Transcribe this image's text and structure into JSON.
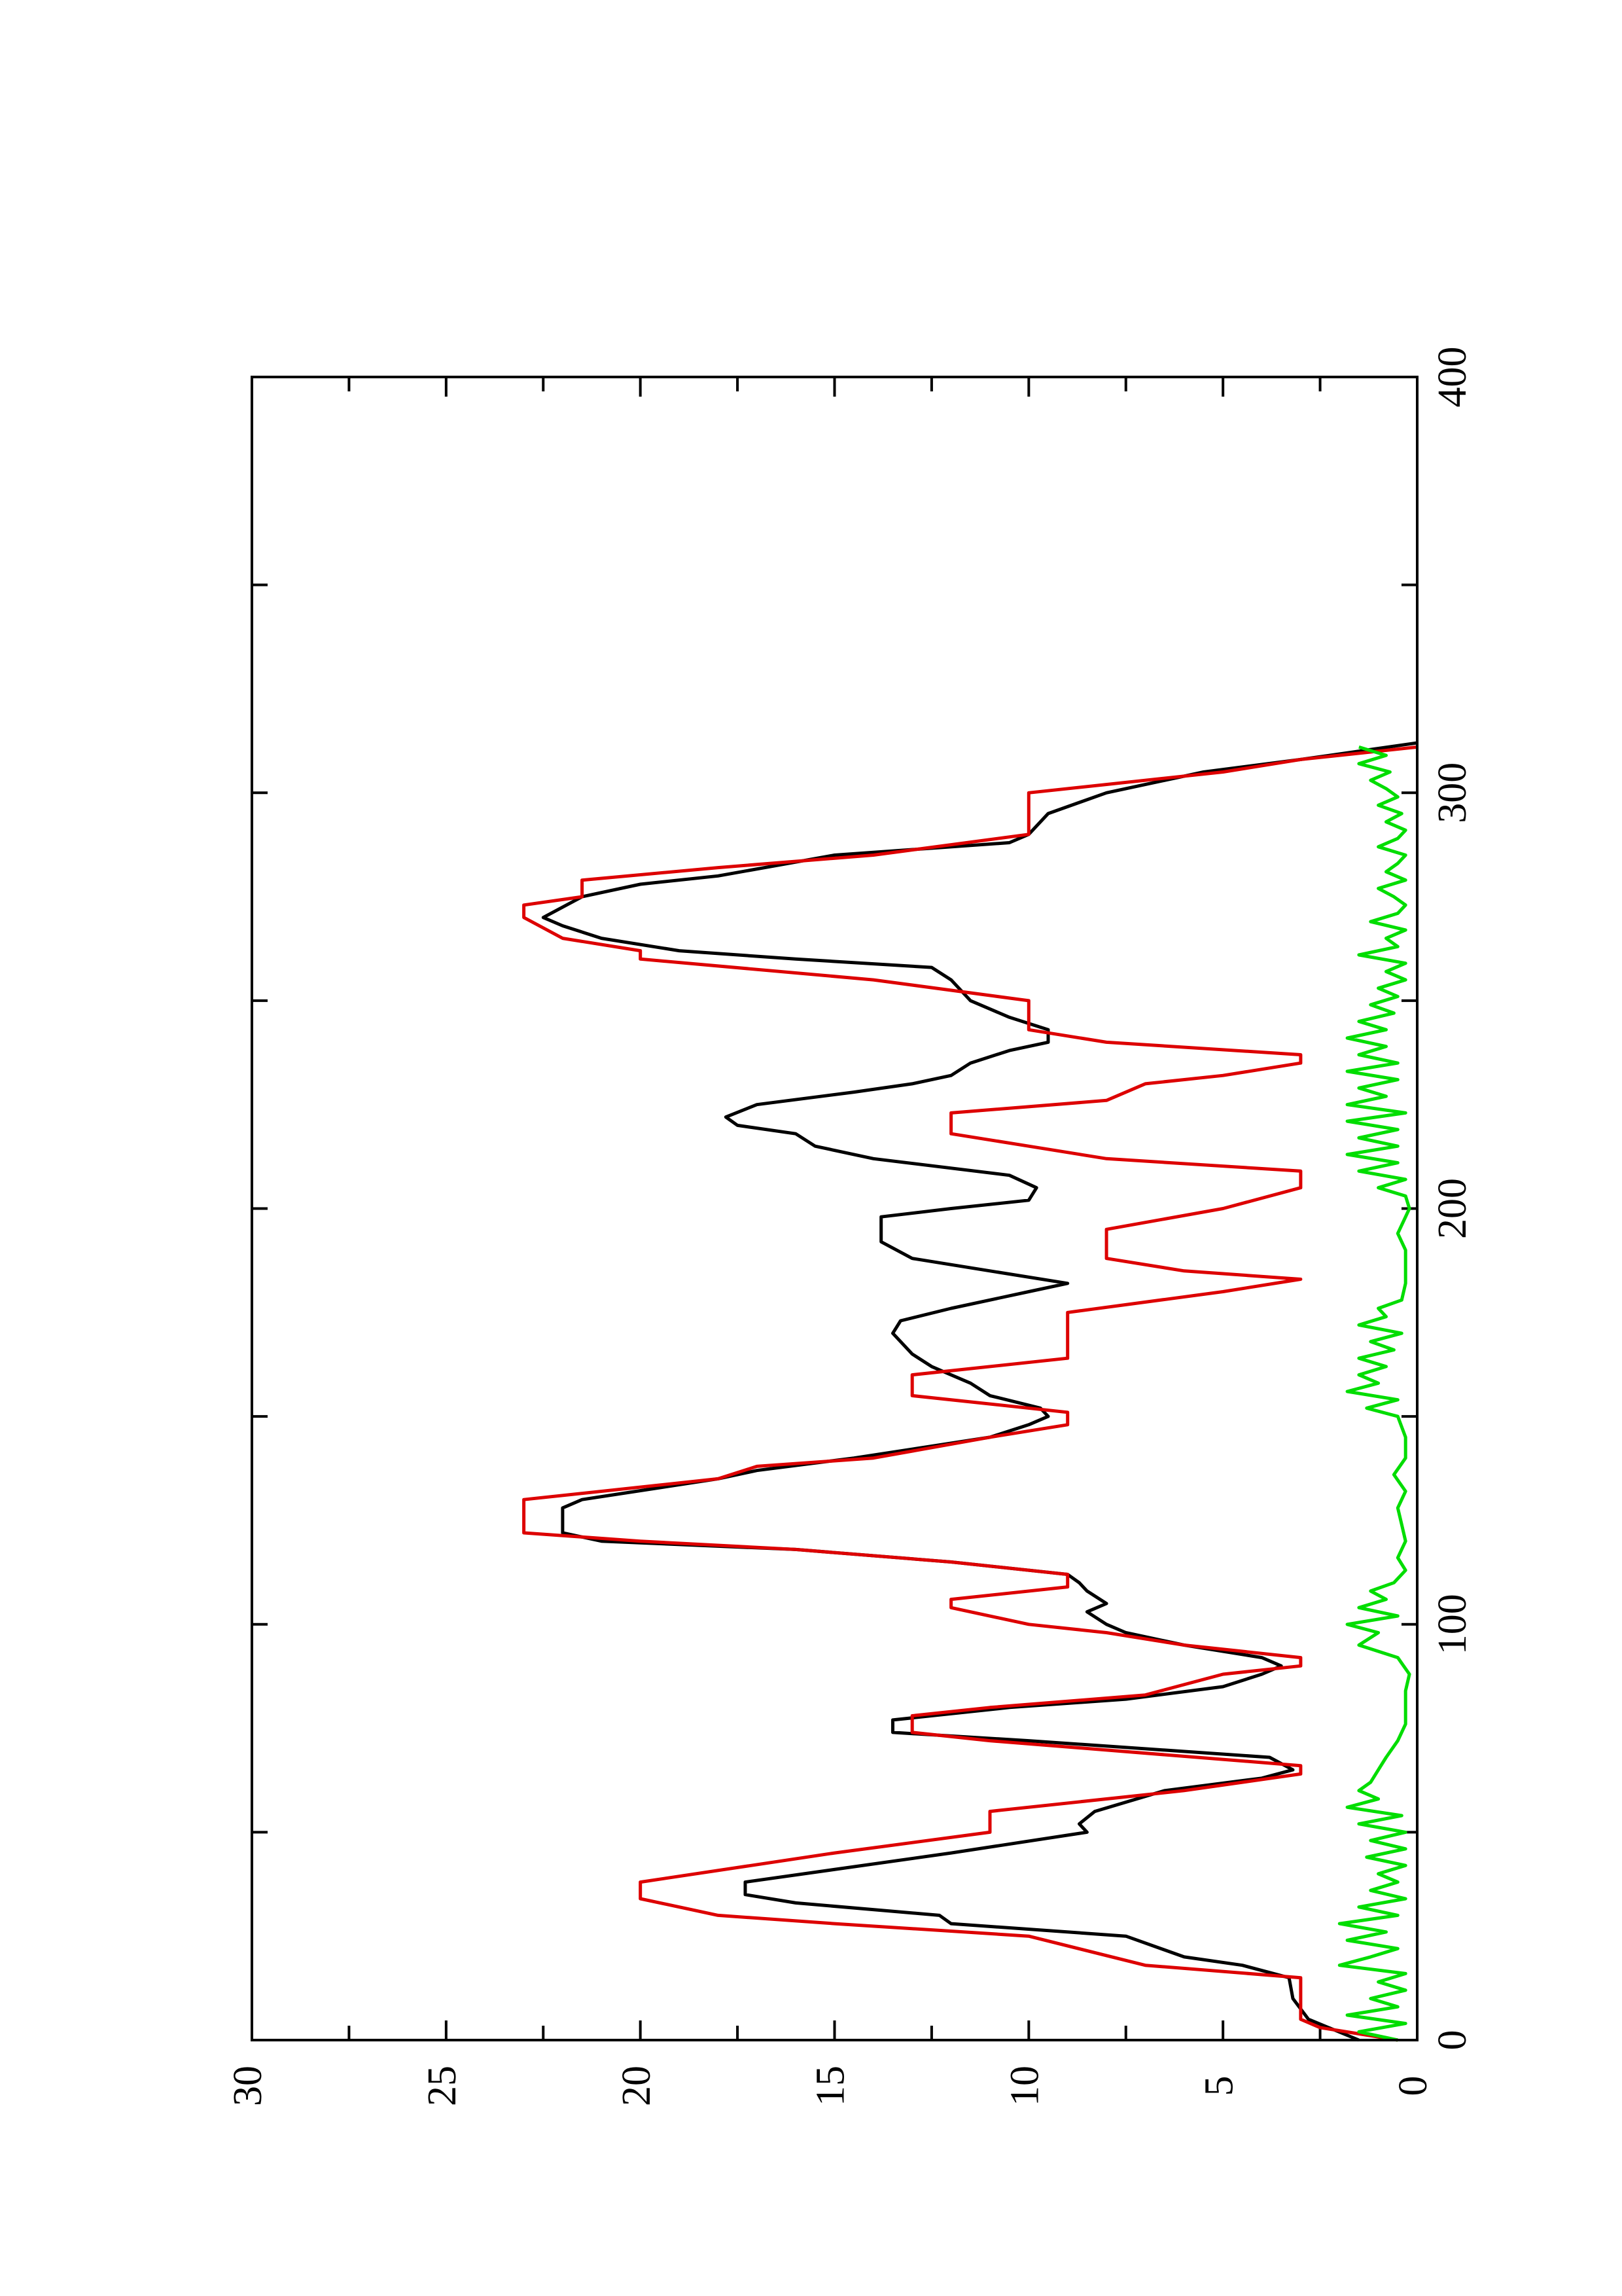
{
  "chart_data": {
    "type": "line",
    "orientation": "rotated-90-ccw",
    "title": "",
    "xlabel": "",
    "ylabel": "",
    "xlim": [
      0,
      400
    ],
    "ylim": [
      0,
      30
    ],
    "grid": false,
    "legend": "none",
    "x_ticks": [
      0,
      100,
      200,
      300,
      400
    ],
    "x_tick_labels": [
      "0",
      "100",
      "200",
      "300",
      "400"
    ],
    "y_ticks": [
      0,
      5,
      10,
      15,
      20,
      25,
      30
    ],
    "y_tick_labels": [
      "0",
      "5",
      "10",
      "15",
      "20",
      "25",
      "30"
    ],
    "series": [
      {
        "color": "#000000",
        "points": [
          [
            0,
            1.5
          ],
          [
            5,
            2.8
          ],
          [
            10,
            3.2
          ],
          [
            15,
            3.3
          ],
          [
            18,
            4.5
          ],
          [
            20,
            6.0
          ],
          [
            25,
            7.5
          ],
          [
            28,
            12.0
          ],
          [
            30,
            12.3
          ],
          [
            33,
            16.0
          ],
          [
            35,
            17.3
          ],
          [
            38,
            17.3
          ],
          [
            45,
            12.0
          ],
          [
            50,
            8.5
          ],
          [
            52,
            8.7
          ],
          [
            55,
            8.3
          ],
          [
            60,
            6.5
          ],
          [
            63,
            4.0
          ],
          [
            65,
            3.2
          ],
          [
            68,
            3.8
          ],
          [
            72,
            10.0
          ],
          [
            74,
            13.5
          ],
          [
            77,
            13.5
          ],
          [
            80,
            10.5
          ],
          [
            82,
            7.5
          ],
          [
            85,
            5.0
          ],
          [
            88,
            4.0
          ],
          [
            90,
            3.5
          ],
          [
            92,
            4.0
          ],
          [
            95,
            6.0
          ],
          [
            98,
            7.5
          ],
          [
            100,
            8.0
          ],
          [
            103,
            8.5
          ],
          [
            105,
            8.0
          ],
          [
            108,
            8.5
          ],
          [
            110,
            8.7
          ],
          [
            112,
            9.0
          ],
          [
            115,
            12.0
          ],
          [
            118,
            16.0
          ],
          [
            120,
            21.0
          ],
          [
            122,
            22.0
          ],
          [
            128,
            22.0
          ],
          [
            130,
            21.5
          ],
          [
            135,
            18.0
          ],
          [
            137,
            17.0
          ],
          [
            140,
            14.5
          ],
          [
            145,
            11.0
          ],
          [
            148,
            10.0
          ],
          [
            150,
            9.5
          ],
          [
            152,
            9.7
          ],
          [
            155,
            11.0
          ],
          [
            158,
            11.5
          ],
          [
            162,
            12.5
          ],
          [
            165,
            13.0
          ],
          [
            170,
            13.5
          ],
          [
            173,
            13.3
          ],
          [
            176,
            12.0
          ],
          [
            180,
            10.0
          ],
          [
            182,
            9.0
          ],
          [
            185,
            11.0
          ],
          [
            188,
            13.0
          ],
          [
            192,
            13.8
          ],
          [
            198,
            13.8
          ],
          [
            200,
            12.0
          ],
          [
            202,
            10.0
          ],
          [
            205,
            9.8
          ],
          [
            208,
            10.5
          ],
          [
            212,
            14.0
          ],
          [
            215,
            15.5
          ],
          [
            218,
            16.0
          ],
          [
            220,
            17.5
          ],
          [
            222,
            17.8
          ],
          [
            225,
            17.0
          ],
          [
            228,
            14.5
          ],
          [
            230,
            13.0
          ],
          [
            232,
            12.0
          ],
          [
            235,
            11.5
          ],
          [
            238,
            10.5
          ],
          [
            240,
            9.5
          ],
          [
            243,
            9.5
          ],
          [
            246,
            10.5
          ],
          [
            250,
            11.5
          ],
          [
            255,
            12.0
          ],
          [
            258,
            12.5
          ],
          [
            260,
            16.0
          ],
          [
            262,
            19.0
          ],
          [
            265,
            21.0
          ],
          [
            268,
            22.0
          ],
          [
            270,
            22.5
          ],
          [
            275,
            21.5
          ],
          [
            278,
            20.0
          ],
          [
            280,
            18.0
          ],
          [
            285,
            15.0
          ],
          [
            288,
            10.5
          ],
          [
            290,
            10.0
          ],
          [
            295,
            9.5
          ],
          [
            300,
            8.0
          ],
          [
            305,
            5.5
          ],
          [
            308,
            3.0
          ],
          [
            312,
            0.0
          ]
        ]
      },
      {
        "color": "#dd0000",
        "points": [
          [
            0,
            0.5
          ],
          [
            3,
            2.5
          ],
          [
            5,
            3.0
          ],
          [
            15,
            3.0
          ],
          [
            18,
            7.0
          ],
          [
            25,
            10.0
          ],
          [
            28,
            15.0
          ],
          [
            30,
            18.0
          ],
          [
            34,
            20.0
          ],
          [
            38,
            20.0
          ],
          [
            45,
            15.0
          ],
          [
            50,
            11.0
          ],
          [
            55,
            11.0
          ],
          [
            60,
            6.0
          ],
          [
            64,
            3.0
          ],
          [
            66,
            3.0
          ],
          [
            72,
            11.0
          ],
          [
            74,
            13.0
          ],
          [
            78,
            13.0
          ],
          [
            80,
            11.0
          ],
          [
            83,
            7.0
          ],
          [
            88,
            5.0
          ],
          [
            90,
            3.0
          ],
          [
            92,
            3.0
          ],
          [
            95,
            6.0
          ],
          [
            98,
            8.0
          ],
          [
            100,
            10.0
          ],
          [
            104,
            12.0
          ],
          [
            106,
            12.0
          ],
          [
            109,
            9.0
          ],
          [
            112,
            9.0
          ],
          [
            115,
            12.0
          ],
          [
            118,
            16.0
          ],
          [
            120,
            20.0
          ],
          [
            122,
            23.0
          ],
          [
            130,
            23.0
          ],
          [
            135,
            18.0
          ],
          [
            138,
            17.0
          ],
          [
            140,
            14.0
          ],
          [
            145,
            11.0
          ],
          [
            148,
            9.0
          ],
          [
            151,
            9.0
          ],
          [
            155,
            13.0
          ],
          [
            160,
            13.0
          ],
          [
            164,
            9.0
          ],
          [
            175,
            9.0
          ],
          [
            180,
            5.0
          ],
          [
            183,
            3.0
          ],
          [
            185,
            6.0
          ],
          [
            188,
            8.0
          ],
          [
            195,
            8.0
          ],
          [
            200,
            5.0
          ],
          [
            205,
            3.0
          ],
          [
            209,
            3.0
          ],
          [
            212,
            8.0
          ],
          [
            215,
            10.0
          ],
          [
            218,
            12.0
          ],
          [
            223,
            12.0
          ],
          [
            226,
            8.0
          ],
          [
            230,
            7.0
          ],
          [
            232,
            5.0
          ],
          [
            235,
            3.0
          ],
          [
            237,
            3.0
          ],
          [
            240,
            8.0
          ],
          [
            243,
            10.0
          ],
          [
            250,
            10.0
          ],
          [
            255,
            14.0
          ],
          [
            260,
            20.0
          ],
          [
            262,
            20.0
          ],
          [
            265,
            22.0
          ],
          [
            270,
            23.0
          ],
          [
            273,
            23.0
          ],
          [
            275,
            21.5
          ],
          [
            279,
            21.5
          ],
          [
            282,
            18.0
          ],
          [
            285,
            14.0
          ],
          [
            290,
            10.0
          ],
          [
            300,
            10.0
          ],
          [
            305,
            5.0
          ],
          [
            308,
            3.0
          ],
          [
            311,
            0.0
          ]
        ]
      },
      {
        "color": "#00dd00",
        "points": [
          [
            0,
            0.5
          ],
          [
            2,
            1.5
          ],
          [
            4,
            0.3
          ],
          [
            6,
            1.8
          ],
          [
            8,
            0.5
          ],
          [
            10,
            1.2
          ],
          [
            12,
            0.3
          ],
          [
            14,
            1.0
          ],
          [
            16,
            0.3
          ],
          [
            18,
            2.0
          ],
          [
            20,
            1.2
          ],
          [
            22,
            0.5
          ],
          [
            24,
            1.8
          ],
          [
            26,
            0.8
          ],
          [
            28,
            2.0
          ],
          [
            30,
            0.5
          ],
          [
            32,
            1.5
          ],
          [
            34,
            0.3
          ],
          [
            36,
            1.2
          ],
          [
            38,
            0.5
          ],
          [
            40,
            1.0
          ],
          [
            42,
            0.3
          ],
          [
            44,
            1.3
          ],
          [
            46,
            0.3
          ],
          [
            48,
            1.2
          ],
          [
            50,
            0.3
          ],
          [
            52,
            1.5
          ],
          [
            54,
            0.4
          ],
          [
            56,
            1.8
          ],
          [
            58,
            1.0
          ],
          [
            60,
            1.5
          ],
          [
            62,
            1.2
          ],
          [
            65,
            1.0
          ],
          [
            68,
            0.8
          ],
          [
            72,
            0.5
          ],
          [
            76,
            0.3
          ],
          [
            80,
            0.3
          ],
          [
            84,
            0.3
          ],
          [
            88,
            0.2
          ],
          [
            92,
            0.5
          ],
          [
            95,
            1.5
          ],
          [
            98,
            1.0
          ],
          [
            100,
            1.8
          ],
          [
            102,
            0.5
          ],
          [
            104,
            1.5
          ],
          [
            106,
            0.8
          ],
          [
            108,
            1.2
          ],
          [
            110,
            0.6
          ],
          [
            113,
            0.3
          ],
          [
            116,
            0.5
          ],
          [
            120,
            0.3
          ],
          [
            124,
            0.4
          ],
          [
            128,
            0.5
          ],
          [
            132,
            0.3
          ],
          [
            136,
            0.6
          ],
          [
            140,
            0.3
          ],
          [
            145,
            0.3
          ],
          [
            150,
            0.5
          ],
          [
            152,
            1.3
          ],
          [
            154,
            0.5
          ],
          [
            156,
            1.8
          ],
          [
            158,
            1.0
          ],
          [
            160,
            1.5
          ],
          [
            162,
            0.8
          ],
          [
            164,
            1.5
          ],
          [
            166,
            0.6
          ],
          [
            168,
            1.2
          ],
          [
            170,
            0.4
          ],
          [
            172,
            1.5
          ],
          [
            174,
            0.8
          ],
          [
            176,
            1.0
          ],
          [
            178,
            0.4
          ],
          [
            182,
            0.3
          ],
          [
            186,
            0.3
          ],
          [
            190,
            0.3
          ],
          [
            194,
            0.5
          ],
          [
            198,
            0.3
          ],
          [
            200,
            0.2
          ],
          [
            203,
            0.3
          ],
          [
            205,
            1.0
          ],
          [
            207,
            0.3
          ],
          [
            209,
            1.5
          ],
          [
            211,
            0.5
          ],
          [
            213,
            1.8
          ],
          [
            215,
            0.5
          ],
          [
            217,
            1.5
          ],
          [
            219,
            0.5
          ],
          [
            221,
            1.8
          ],
          [
            223,
            0.3
          ],
          [
            225,
            1.8
          ],
          [
            227,
            0.8
          ],
          [
            229,
            1.5
          ],
          [
            231,
            0.5
          ],
          [
            233,
            1.8
          ],
          [
            235,
            0.5
          ],
          [
            237,
            1.5
          ],
          [
            239,
            0.8
          ],
          [
            241,
            1.8
          ],
          [
            243,
            0.8
          ],
          [
            245,
            1.5
          ],
          [
            247,
            0.6
          ],
          [
            249,
            1.2
          ],
          [
            251,
            0.5
          ],
          [
            253,
            1.0
          ],
          [
            255,
            0.3
          ],
          [
            257,
            0.8
          ],
          [
            259,
            0.3
          ],
          [
            261,
            1.5
          ],
          [
            263,
            0.5
          ],
          [
            265,
            0.8
          ],
          [
            267,
            0.3
          ],
          [
            269,
            1.2
          ],
          [
            271,
            0.5
          ],
          [
            273,
            0.3
          ],
          [
            275,
            0.6
          ],
          [
            277,
            1.0
          ],
          [
            279,
            0.3
          ],
          [
            281,
            0.8
          ],
          [
            283,
            0.5
          ],
          [
            285,
            0.3
          ],
          [
            287,
            1.0
          ],
          [
            289,
            0.5
          ],
          [
            291,
            0.3
          ],
          [
            293,
            0.8
          ],
          [
            295,
            0.4
          ],
          [
            297,
            1.0
          ],
          [
            299,
            0.5
          ],
          [
            301,
            0.8
          ],
          [
            303,
            1.2
          ],
          [
            305,
            0.7
          ],
          [
            307,
            1.5
          ],
          [
            309,
            0.8
          ],
          [
            311,
            1.5
          ]
        ]
      }
    ]
  }
}
